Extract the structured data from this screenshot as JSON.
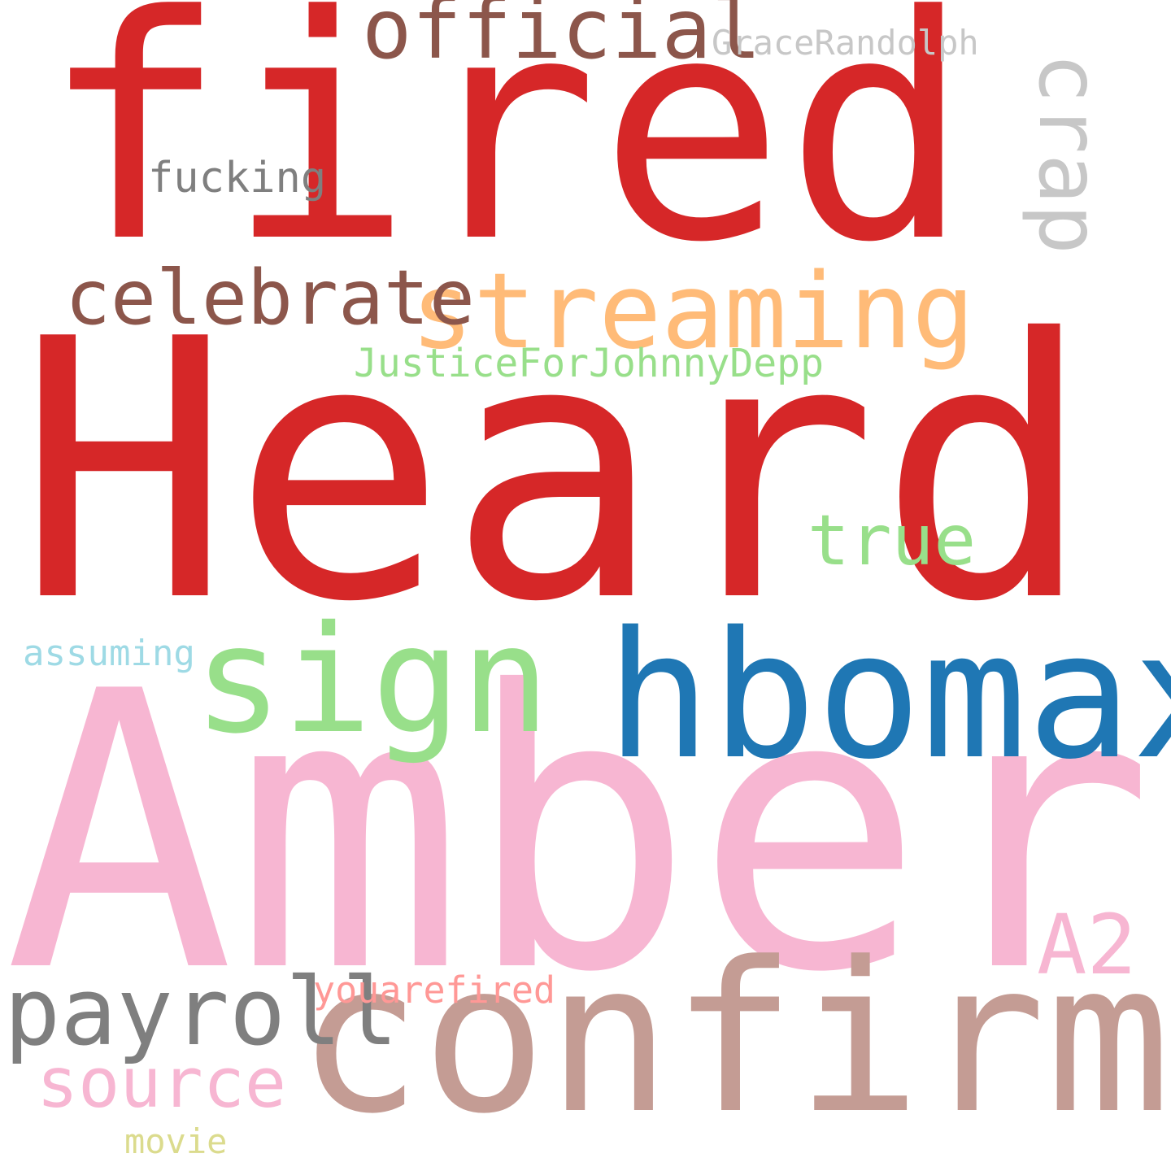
{
  "words": [
    {
      "key": "fired",
      "text": "fired",
      "color": "#d62728"
    },
    {
      "key": "heard",
      "text": "Heard",
      "color": "#d62728"
    },
    {
      "key": "amber",
      "text": "Amber",
      "color": "#f7b6d2"
    },
    {
      "key": "confirm",
      "text": "confirm",
      "color": "#c49c94"
    },
    {
      "key": "hbomax",
      "text": "hbomax",
      "color": "#1f77b4"
    },
    {
      "key": "sign",
      "text": "sign",
      "color": "#98df8a"
    },
    {
      "key": "streaming",
      "text": "streaming",
      "color": "#ffbb78"
    },
    {
      "key": "crap",
      "text": "crap",
      "color": "#c7c7c7"
    },
    {
      "key": "official",
      "text": "official",
      "color": "#8c564b"
    },
    {
      "key": "celebrate",
      "text": "celebrate",
      "color": "#8c564b"
    },
    {
      "key": "payroll",
      "text": "payroll",
      "color": "#7f7f7f"
    },
    {
      "key": "source",
      "text": "source",
      "color": "#f7b6d2"
    },
    {
      "key": "true",
      "text": "true",
      "color": "#98df8a"
    },
    {
      "key": "a2",
      "text": "A2",
      "color": "#f7b6d2"
    },
    {
      "key": "fucking",
      "text": "fucking",
      "color": "#7f7f7f"
    },
    {
      "key": "justice",
      "text": "JusticeForJohnnyDepp",
      "color": "#98df8a"
    },
    {
      "key": "grace",
      "text": "GraceRandolph",
      "color": "#c7c7c7"
    },
    {
      "key": "assuming",
      "text": "assuming",
      "color": "#9edae5"
    },
    {
      "key": "youarefired",
      "text": "youarefired",
      "color": "#ff9896"
    },
    {
      "key": "movie",
      "text": "movie",
      "color": "#dbdb8d"
    }
  ]
}
